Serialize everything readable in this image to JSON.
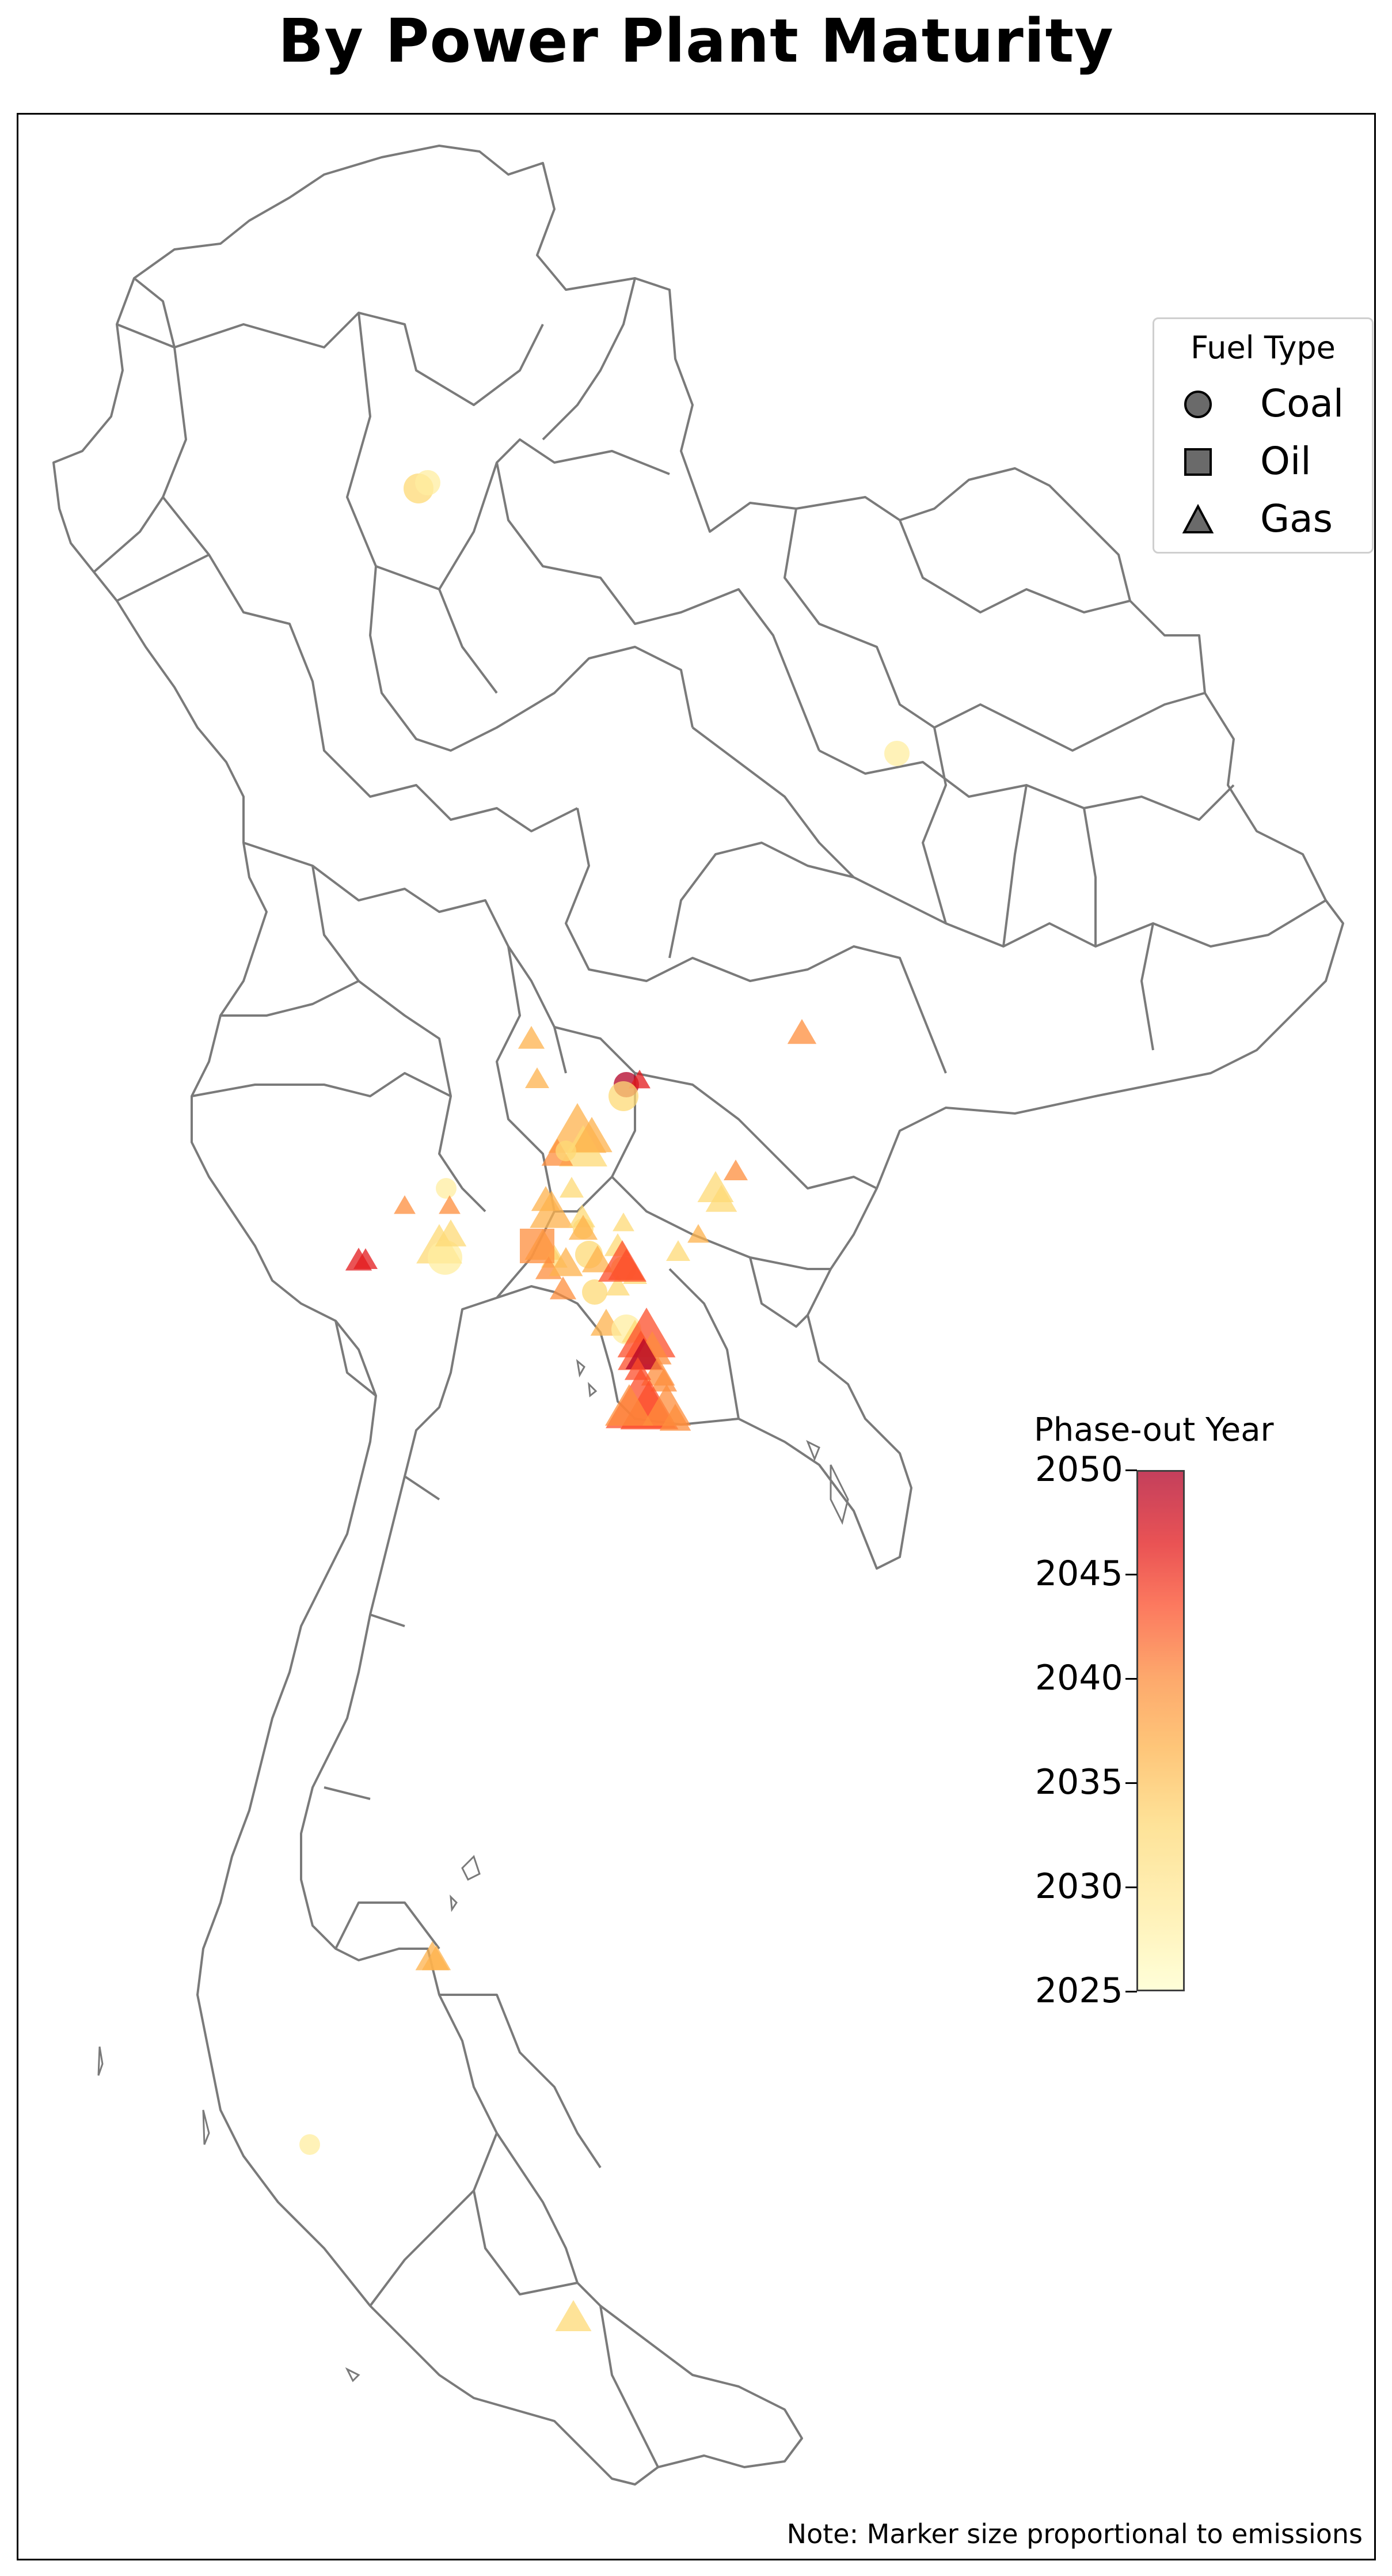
{
  "title": "By Power Plant Maturity",
  "note": "Note: Marker size proportional to emissions",
  "legend": {
    "title": "Fuel Type",
    "items": [
      {
        "label": "Coal",
        "marker": "circle"
      },
      {
        "label": "Oil",
        "marker": "square"
      },
      {
        "label": "Gas",
        "marker": "triangle"
      }
    ]
  },
  "colorbar": {
    "title": "Phase-out Year",
    "ticks": [
      "2050",
      "2045",
      "2040",
      "2035",
      "2030",
      "2025"
    ],
    "range": [
      2025,
      2050
    ],
    "palette": [
      "#ffffcc",
      "#ffeda0",
      "#fed976",
      "#feb24c",
      "#fd8d3c",
      "#fc4e2a",
      "#e31a1c",
      "#b10026"
    ]
  },
  "colors": {
    "border": "#7a7a7a",
    "frame": "#000000"
  },
  "map": {
    "region": "Thailand provinces",
    "marker_size_meaning": "emissions"
  }
}
